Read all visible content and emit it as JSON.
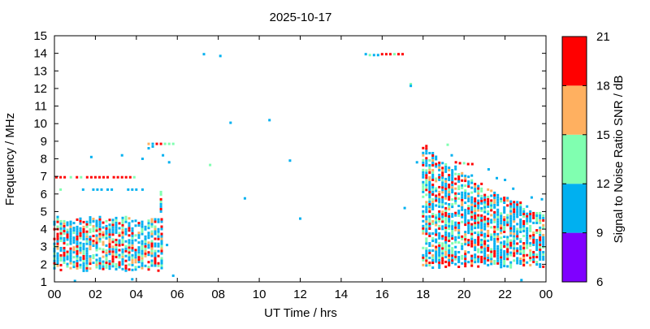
{
  "chart_data": {
    "type": "scatter",
    "title": "2025-10-17",
    "xlabel": "UT Time / hrs",
    "ylabel": "Frequency / MHz",
    "xlim": [
      0,
      24
    ],
    "ylim": [
      1,
      15
    ],
    "x_ticks": [
      "00",
      "02",
      "04",
      "06",
      "08",
      "10",
      "12",
      "14",
      "16",
      "18",
      "20",
      "22",
      "00"
    ],
    "y_ticks": [
      "1",
      "2",
      "3",
      "4",
      "5",
      "6",
      "7",
      "8",
      "9",
      "10",
      "11",
      "12",
      "13",
      "14",
      "15"
    ],
    "grid": false,
    "colorbar": {
      "label": "Signal to Noise Ratio SNR / dB",
      "range": [
        6,
        21
      ],
      "ticks": [
        "6",
        "9",
        "12",
        "15",
        "18",
        "21"
      ],
      "bands": [
        {
          "from": 6,
          "to": 9,
          "color": "#7f00ff"
        },
        {
          "from": 9,
          "to": 12,
          "color": "#00b0f0"
        },
        {
          "from": 12,
          "to": 15,
          "color": "#80ffb0"
        },
        {
          "from": 15,
          "to": 18,
          "color": "#ffb060"
        },
        {
          "from": 18,
          "to": 21,
          "color": "#ff0000"
        }
      ]
    },
    "clusters": [
      {
        "x": [
          0.0,
          5.4
        ],
        "y": [
          1.6,
          4.8
        ],
        "snr": [
          10,
          21
        ],
        "density": 0.8
      },
      {
        "x": [
          5.2,
          5.4
        ],
        "y": [
          4.8,
          6.2
        ],
        "snr": [
          10,
          21
        ],
        "density": 0.8
      },
      {
        "x": [
          18.0,
          24.0
        ],
        "y": [
          1.8,
          9.0
        ],
        "snr": [
          10,
          21
        ],
        "density": 0.75,
        "upper_edge": [
          [
            18.0,
            9.0
          ],
          [
            19.0,
            8.0
          ],
          [
            20.5,
            7.0
          ],
          [
            22.0,
            6.0
          ],
          [
            24.0,
            5.0
          ]
        ]
      }
    ],
    "points": [
      {
        "x": 0.1,
        "y": 6.95,
        "snr": 20
      },
      {
        "x": 0.3,
        "y": 6.95,
        "snr": 20
      },
      {
        "x": 0.5,
        "y": 6.95,
        "snr": 19
      },
      {
        "x": 0.8,
        "y": 6.95,
        "snr": 13
      },
      {
        "x": 1.1,
        "y": 6.95,
        "snr": 19
      },
      {
        "x": 1.3,
        "y": 6.95,
        "snr": 14
      },
      {
        "x": 1.6,
        "y": 6.95,
        "snr": 20
      },
      {
        "x": 1.8,
        "y": 6.95,
        "snr": 19
      },
      {
        "x": 2.0,
        "y": 6.95,
        "snr": 20
      },
      {
        "x": 2.2,
        "y": 6.95,
        "snr": 19
      },
      {
        "x": 2.4,
        "y": 6.95,
        "snr": 20
      },
      {
        "x": 2.6,
        "y": 6.95,
        "snr": 20
      },
      {
        "x": 2.9,
        "y": 6.95,
        "snr": 19
      },
      {
        "x": 3.1,
        "y": 6.95,
        "snr": 20
      },
      {
        "x": 3.3,
        "y": 6.95,
        "snr": 19
      },
      {
        "x": 3.5,
        "y": 6.95,
        "snr": 20
      },
      {
        "x": 3.7,
        "y": 6.95,
        "snr": 19
      },
      {
        "x": 3.9,
        "y": 6.95,
        "snr": 13
      },
      {
        "x": 0.3,
        "y": 6.25,
        "snr": 13
      },
      {
        "x": 1.4,
        "y": 6.25,
        "snr": 11
      },
      {
        "x": 1.9,
        "y": 6.25,
        "snr": 11
      },
      {
        "x": 2.1,
        "y": 6.25,
        "snr": 11
      },
      {
        "x": 2.3,
        "y": 6.25,
        "snr": 11
      },
      {
        "x": 2.6,
        "y": 6.25,
        "snr": 11
      },
      {
        "x": 2.8,
        "y": 6.25,
        "snr": 11
      },
      {
        "x": 3.6,
        "y": 6.25,
        "snr": 11
      },
      {
        "x": 3.8,
        "y": 6.25,
        "snr": 11
      },
      {
        "x": 4.0,
        "y": 6.25,
        "snr": 11
      },
      {
        "x": 4.3,
        "y": 6.25,
        "snr": 11
      },
      {
        "x": 4.6,
        "y": 8.85,
        "snr": 16
      },
      {
        "x": 4.8,
        "y": 8.85,
        "snr": 11
      },
      {
        "x": 5.0,
        "y": 8.85,
        "snr": 19
      },
      {
        "x": 5.2,
        "y": 8.85,
        "snr": 19
      },
      {
        "x": 5.4,
        "y": 8.85,
        "snr": 13
      },
      {
        "x": 5.6,
        "y": 8.85,
        "snr": 13
      },
      {
        "x": 5.8,
        "y": 8.85,
        "snr": 13
      },
      {
        "x": 4.6,
        "y": 8.6,
        "snr": 11
      },
      {
        "x": 4.8,
        "y": 8.7,
        "snr": 11
      },
      {
        "x": 1.8,
        "y": 8.1,
        "snr": 11
      },
      {
        "x": 3.3,
        "y": 8.2,
        "snr": 11
      },
      {
        "x": 4.3,
        "y": 8.0,
        "snr": 11
      },
      {
        "x": 5.3,
        "y": 8.2,
        "snr": 11
      },
      {
        "x": 5.6,
        "y": 7.8,
        "snr": 11
      },
      {
        "x": 1.0,
        "y": 1.05,
        "snr": 11
      },
      {
        "x": 3.8,
        "y": 1.15,
        "snr": 11
      },
      {
        "x": 5.8,
        "y": 1.35,
        "snr": 11
      },
      {
        "x": 5.5,
        "y": 3.1,
        "snr": 11
      },
      {
        "x": 7.3,
        "y": 13.95,
        "snr": 11
      },
      {
        "x": 8.1,
        "y": 13.85,
        "snr": 11
      },
      {
        "x": 7.6,
        "y": 7.65,
        "snr": 13
      },
      {
        "x": 8.6,
        "y": 10.05,
        "snr": 11
      },
      {
        "x": 9.3,
        "y": 5.75,
        "snr": 11
      },
      {
        "x": 10.5,
        "y": 10.2,
        "snr": 11
      },
      {
        "x": 11.5,
        "y": 7.9,
        "snr": 11
      },
      {
        "x": 12.0,
        "y": 4.6,
        "snr": 11
      },
      {
        "x": 15.2,
        "y": 13.95,
        "snr": 11
      },
      {
        "x": 15.4,
        "y": 13.9,
        "snr": 13
      },
      {
        "x": 15.6,
        "y": 13.9,
        "snr": 11
      },
      {
        "x": 15.8,
        "y": 13.9,
        "snr": 11
      },
      {
        "x": 16.0,
        "y": 13.95,
        "snr": 19
      },
      {
        "x": 16.2,
        "y": 13.95,
        "snr": 19
      },
      {
        "x": 16.4,
        "y": 13.95,
        "snr": 19
      },
      {
        "x": 16.6,
        "y": 13.95,
        "snr": 13
      },
      {
        "x": 16.8,
        "y": 13.95,
        "snr": 19
      },
      {
        "x": 17.0,
        "y": 13.95,
        "snr": 19
      },
      {
        "x": 17.4,
        "y": 12.25,
        "snr": 13
      },
      {
        "x": 17.4,
        "y": 12.15,
        "snr": 11
      },
      {
        "x": 17.1,
        "y": 5.2,
        "snr": 11
      },
      {
        "x": 17.7,
        "y": 7.8,
        "snr": 11
      },
      {
        "x": 19.2,
        "y": 8.8,
        "snr": 13
      },
      {
        "x": 19.4,
        "y": 8.2,
        "snr": 11
      },
      {
        "x": 19.6,
        "y": 7.8,
        "snr": 19
      },
      {
        "x": 19.8,
        "y": 7.75,
        "snr": 19
      },
      {
        "x": 20.0,
        "y": 7.75,
        "snr": 13
      },
      {
        "x": 20.2,
        "y": 7.7,
        "snr": 19
      },
      {
        "x": 20.4,
        "y": 7.7,
        "snr": 19
      },
      {
        "x": 21.2,
        "y": 7.4,
        "snr": 11
      },
      {
        "x": 21.6,
        "y": 6.9,
        "snr": 11
      },
      {
        "x": 22.0,
        "y": 6.8,
        "snr": 11
      },
      {
        "x": 22.4,
        "y": 6.3,
        "snr": 11
      },
      {
        "x": 22.8,
        "y": 1.1,
        "snr": 11
      },
      {
        "x": 23.3,
        "y": 5.8,
        "snr": 11
      },
      {
        "x": 23.8,
        "y": 5.7,
        "snr": 11
      }
    ]
  }
}
